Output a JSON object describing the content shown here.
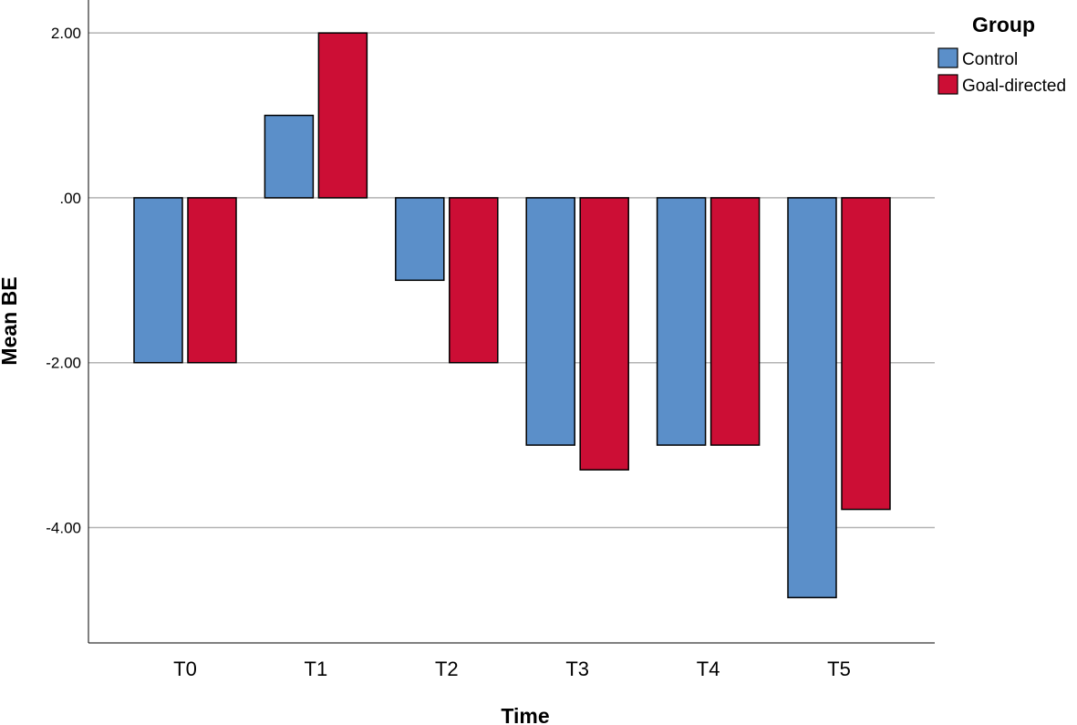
{
  "chart_data": {
    "type": "bar",
    "title": "",
    "xlabel": "Time",
    "ylabel": "Mean BE",
    "categories": [
      "T0",
      "T1",
      "T2",
      "T3",
      "T4",
      "T5"
    ],
    "series": [
      {
        "name": "Control",
        "color": "#5b8fc9",
        "values": [
          -2.0,
          1.0,
          -1.0,
          -3.0,
          -3.0,
          -4.85
        ]
      },
      {
        "name": "Goal-directed",
        "color": "#cc0e35",
        "values": [
          -2.0,
          2.0,
          -2.0,
          -3.3,
          -3.0,
          -3.78
        ]
      }
    ],
    "ylim": [
      -5.4,
      2.4
    ],
    "yticks": [
      {
        "value": 2,
        "label": "2.00"
      },
      {
        "value": 0,
        "label": ".00"
      },
      {
        "value": -2,
        "label": "-2.00"
      },
      {
        "value": -4,
        "label": "-4.00"
      }
    ],
    "grid": true,
    "legend": {
      "title": "Group",
      "position": "top-right"
    }
  }
}
